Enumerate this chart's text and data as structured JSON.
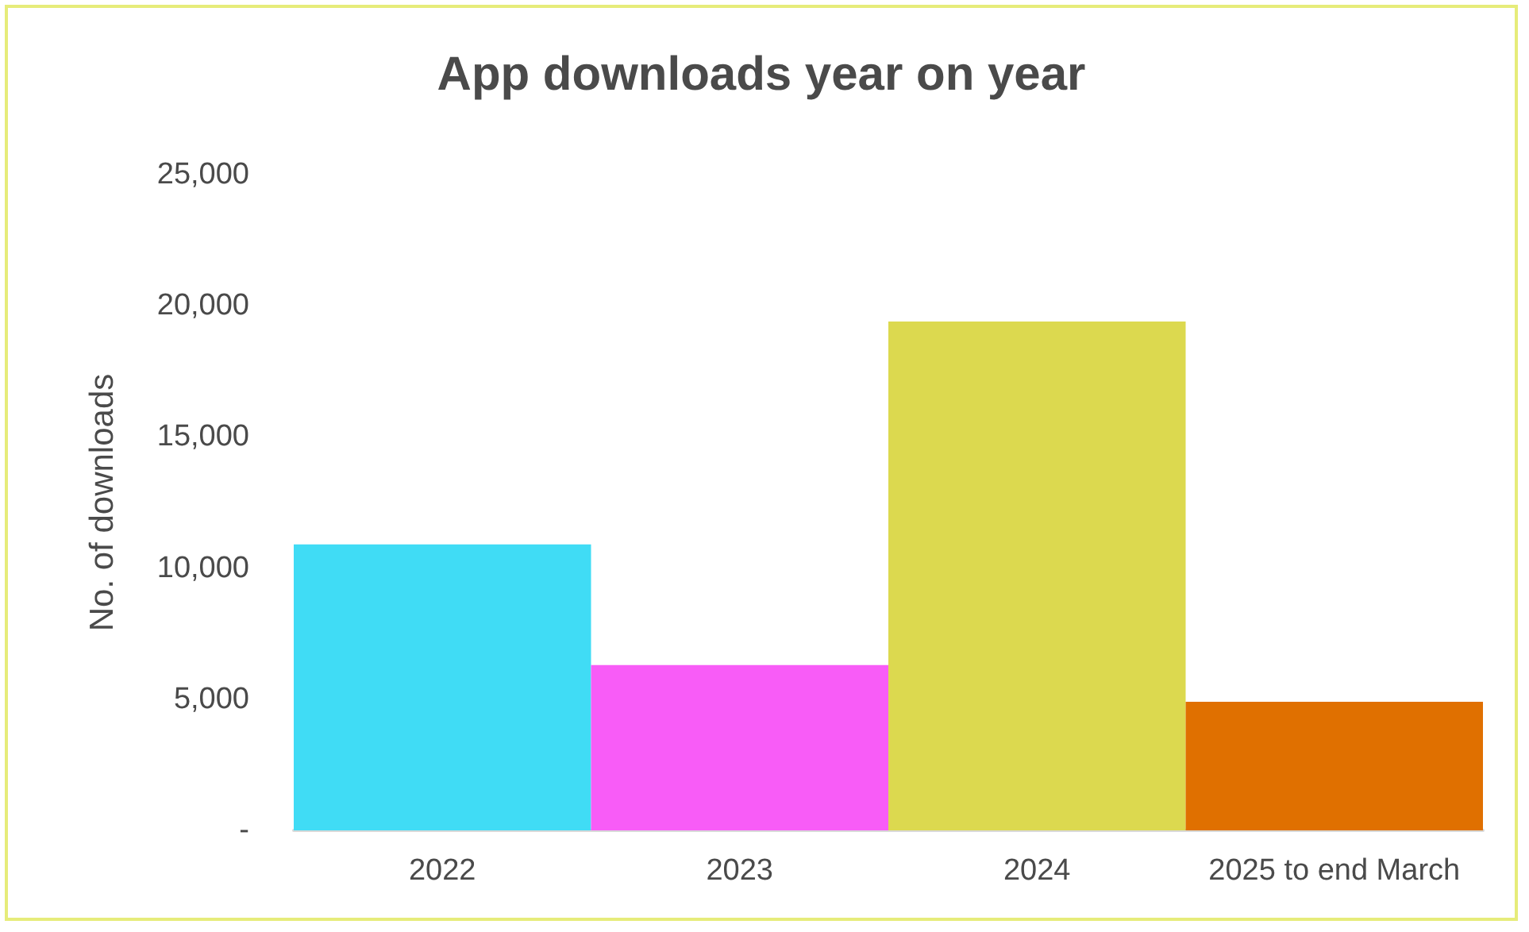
{
  "chart_data": {
    "type": "bar",
    "title": "App downloads year on year",
    "ylabel": "No. of downloads",
    "categories": [
      "2022",
      "2023",
      "2024",
      "2025 to end March"
    ],
    "values": [
      10900,
      6300,
      19400,
      4900
    ],
    "colors": [
      "#40dcf5",
      "#f85cf7",
      "#dcd94f",
      "#e07000"
    ],
    "ylim": [
      0,
      25000
    ],
    "yticks": [
      {
        "value": 0,
        "label": "-"
      },
      {
        "value": 5000,
        "label": "5,000"
      },
      {
        "value": 10000,
        "label": "10,000"
      },
      {
        "value": 15000,
        "label": "15,000"
      },
      {
        "value": 20000,
        "label": "20,000"
      },
      {
        "value": 25000,
        "label": "25,000"
      }
    ],
    "grid": false
  }
}
